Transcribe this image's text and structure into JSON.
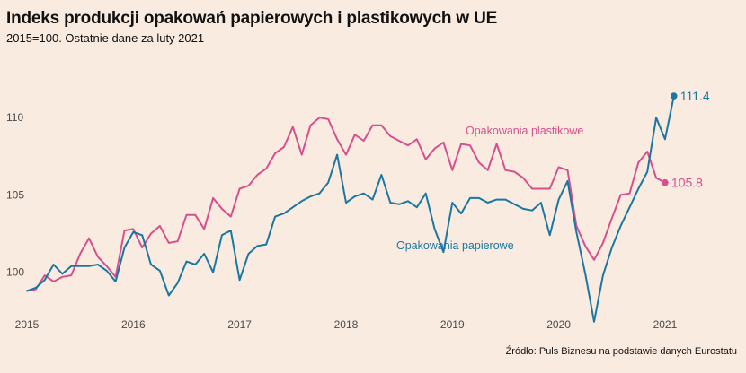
{
  "title": "Indeks produkcji opakowań papierowych i plastikowych w UE",
  "subtitle": "2015=100. Ostatnie dane za luty 2021",
  "source": "Źródło: Puls Biznesu na podstawie danych Eurostatu",
  "chart_data": {
    "type": "line",
    "x_start": "2015-01",
    "x_ticks": [
      "2015",
      "2016",
      "2017",
      "2018",
      "2019",
      "2020",
      "2021"
    ],
    "y_ticks": [
      "100",
      "105",
      "110"
    ],
    "ylim": [
      97,
      114
    ],
    "grid": false,
    "series": [
      {
        "name": "Opakowania plastikowe",
        "color": "#d6508e",
        "end_label": "105.8",
        "values": [
          98.8,
          98.9,
          99.8,
          99.4,
          99.7,
          99.8,
          101.2,
          102.2,
          101.0,
          100.4,
          99.7,
          102.7,
          102.8,
          101.6,
          102.5,
          103.0,
          101.9,
          102.0,
          103.7,
          103.7,
          102.8,
          104.8,
          104.1,
          103.6,
          105.4,
          105.6,
          106.3,
          106.7,
          107.7,
          108.1,
          109.4,
          107.6,
          109.5,
          110.0,
          109.9,
          108.6,
          107.6,
          108.9,
          108.5,
          109.5,
          109.5,
          108.8,
          108.5,
          108.2,
          108.6,
          107.3,
          108.0,
          108.4,
          106.6,
          108.3,
          108.2,
          107.1,
          106.6,
          108.3,
          106.6,
          106.5,
          106.1,
          105.4,
          105.4,
          105.4,
          106.8,
          106.6,
          103.0,
          101.7,
          100.8,
          101.9,
          103.5,
          105.0,
          105.1,
          107.1,
          107.8,
          106.1,
          105.8
        ],
        "last_point_marked": true
      },
      {
        "name": "Opakowania papierowe",
        "color": "#1a77a1",
        "end_label": "111.4",
        "values": [
          98.8,
          99.0,
          99.5,
          100.5,
          99.9,
          100.4,
          100.4,
          100.4,
          100.5,
          100.1,
          99.4,
          101.6,
          102.6,
          102.4,
          100.5,
          100.1,
          98.5,
          99.3,
          100.7,
          100.5,
          101.2,
          100.0,
          102.4,
          102.7,
          99.5,
          101.2,
          101.7,
          101.8,
          103.6,
          103.8,
          104.2,
          104.6,
          104.9,
          105.1,
          105.8,
          107.6,
          104.5,
          104.9,
          105.1,
          104.7,
          106.3,
          104.5,
          104.4,
          104.6,
          104.2,
          105.1,
          102.8,
          101.3,
          104.5,
          103.8,
          104.8,
          104.8,
          104.5,
          104.7,
          104.7,
          104.4,
          104.1,
          104.0,
          104.5,
          102.4,
          104.7,
          105.9,
          102.6,
          99.9,
          96.8,
          99.8,
          101.6,
          103.0,
          104.2,
          105.4,
          106.5,
          110.0,
          108.6,
          111.4
        ],
        "last_point_marked": true
      }
    ]
  }
}
